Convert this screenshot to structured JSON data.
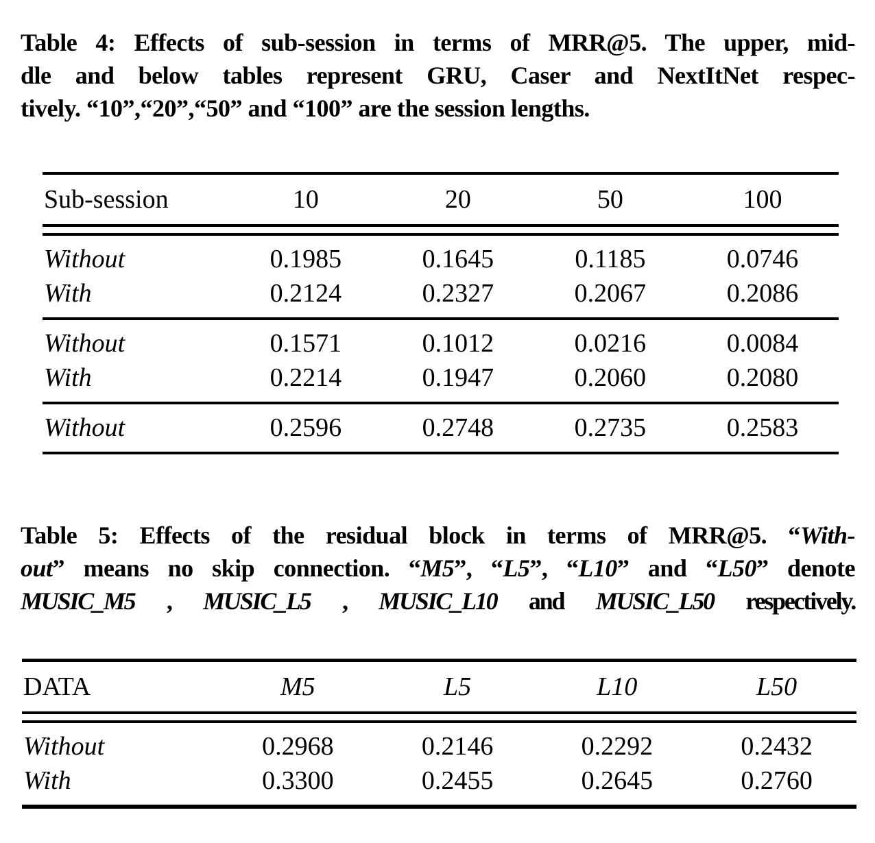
{
  "colors": {
    "text": "#000000",
    "background": "#ffffff"
  },
  "table4": {
    "caption": {
      "line1": {
        "label": "Table 4:",
        "rest": " Effects of sub-session in terms of MRR@5. The upper, mid-"
      },
      "line2": "dle and below tables represent GRU, Caser and NextItNet respec-",
      "line3": "tively. “10”,“20”,“50” and “100” are the session lengths."
    },
    "columns": [
      "Sub-session",
      "10",
      "20",
      "50",
      "100"
    ],
    "groups": [
      {
        "rows": [
          {
            "label": "Without",
            "values": [
              "0.1985",
              "0.1645",
              "0.1185",
              "0.0746"
            ]
          },
          {
            "label": "With",
            "values": [
              "0.2124",
              "0.2327",
              "0.2067",
              "0.2086"
            ]
          }
        ]
      },
      {
        "rows": [
          {
            "label": "Without",
            "values": [
              "0.1571",
              "0.1012",
              "0.0216",
              "0.0084"
            ]
          },
          {
            "label": "With",
            "values": [
              "0.2214",
              "0.1947",
              "0.2060",
              "0.2080"
            ]
          }
        ]
      },
      {
        "rows": [
          {
            "label": "Without",
            "values": [
              "0.2596",
              "0.2748",
              "0.2735",
              "0.2583"
            ]
          }
        ]
      }
    ]
  },
  "table5": {
    "caption": {
      "line1": {
        "label": "Table 5:",
        "rest": " Effects of the residual block in terms of MRR@5. “",
        "italic_tail": "With-"
      },
      "line2": [
        {
          "text": "out"
        },
        {
          "text": "” means no skip connection. “"
        },
        {
          "text": "M5"
        },
        {
          "text": "”, “"
        },
        {
          "text": "L5"
        },
        {
          "text": "”, “"
        },
        {
          "text": "L10"
        },
        {
          "text": "” and “"
        },
        {
          "text": "L50"
        },
        {
          "text": "” denote"
        }
      ],
      "line3": [
        {
          "text": "MUSIC_M5"
        },
        {
          "text": " , "
        },
        {
          "text": "MUSIC_L5"
        },
        {
          "text": " , "
        },
        {
          "text": "MUSIC_L10"
        },
        {
          "text": " and "
        },
        {
          "text": "MUSIC_L50"
        },
        {
          "text": " respectively."
        }
      ]
    },
    "columns": [
      "DATA",
      "M5",
      "L5",
      "L10",
      "L50"
    ],
    "rows": [
      {
        "label": "Without",
        "values": [
          "0.2968",
          "0.2146",
          "0.2292",
          "0.2432"
        ]
      },
      {
        "label": "With",
        "values": [
          "0.3300",
          "0.2455",
          "0.2645",
          "0.2760"
        ]
      }
    ]
  }
}
